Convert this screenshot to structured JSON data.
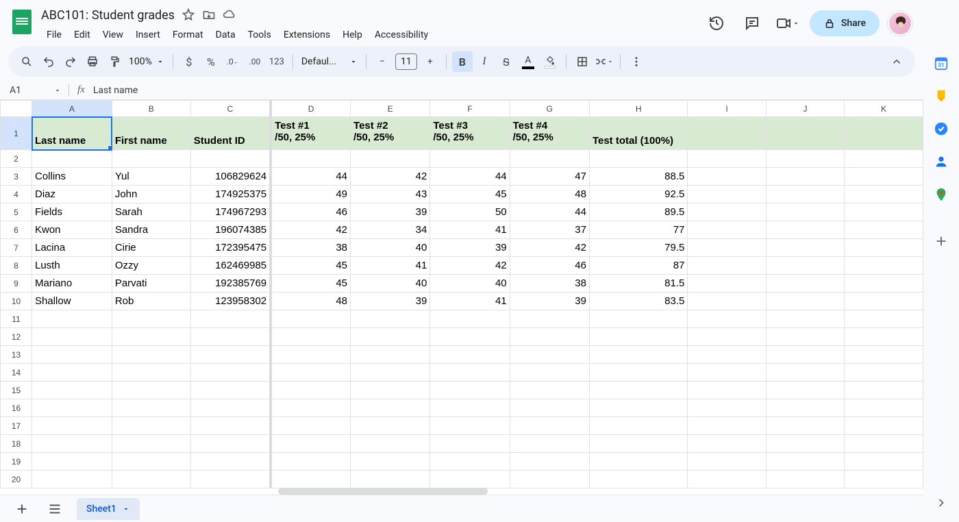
{
  "doc": {
    "title": "ABC101: Student grades"
  },
  "menu": [
    "File",
    "Edit",
    "View",
    "Insert",
    "Format",
    "Data",
    "Tools",
    "Extensions",
    "Help",
    "Accessibility"
  ],
  "share_label": "Share",
  "toolbar": {
    "zoom": "100%",
    "currency": "$",
    "percent": "%",
    "dec_dec": ".0",
    "dec_inc": ".00",
    "fmt123": "123",
    "font_name": "Defaul...",
    "font_size": "11",
    "bold": "B",
    "italic": "I",
    "strike": "S"
  },
  "cell_ref": "A1",
  "formula_value": "Last name",
  "columns": [
    "A",
    "B",
    "C",
    "D",
    "E",
    "F",
    "G",
    "H",
    "I",
    "J",
    "K"
  ],
  "row_count": 20,
  "header_row": 1,
  "headers": {
    "A": "Last name",
    "B": "First name",
    "C": "Student ID",
    "D": "Test #1\n/50, 25%",
    "E": "Test #2\n/50, 25%",
    "F": "Test #3\n/50, 25%",
    "G": "Test #4\n/50, 25%",
    "H": "Test total (100%)",
    "I": "",
    "J": "",
    "K": ""
  },
  "selected": {
    "col": "A",
    "row": 1
  },
  "freeze_after_col": "C",
  "data_rows": [
    {
      "row": 3,
      "A": "Collins",
      "B": "Yul",
      "C": "106829624",
      "D": "44",
      "E": "42",
      "F": "44",
      "G": "47",
      "H": "88.5"
    },
    {
      "row": 4,
      "A": "Diaz",
      "B": "John",
      "C": "174925375",
      "D": "49",
      "E": "43",
      "F": "45",
      "G": "48",
      "H": "92.5"
    },
    {
      "row": 5,
      "A": "Fields",
      "B": "Sarah",
      "C": "174967293",
      "D": "46",
      "E": "39",
      "F": "50",
      "G": "44",
      "H": "89.5"
    },
    {
      "row": 6,
      "A": "Kwon",
      "B": "Sandra",
      "C": "196074385",
      "D": "42",
      "E": "34",
      "F": "41",
      "G": "37",
      "H": "77"
    },
    {
      "row": 7,
      "A": "Lacina",
      "B": "Cirie",
      "C": "172395475",
      "D": "38",
      "E": "40",
      "F": "39",
      "G": "42",
      "H": "79.5"
    },
    {
      "row": 8,
      "A": "Lusth",
      "B": "Ozzy",
      "C": "162469985",
      "D": "45",
      "E": "41",
      "F": "42",
      "G": "46",
      "H": "87"
    },
    {
      "row": 9,
      "A": "Mariano",
      "B": "Parvati",
      "C": "192385769",
      "D": "45",
      "E": "40",
      "F": "40",
      "G": "38",
      "H": "81.5"
    },
    {
      "row": 10,
      "A": "Shallow",
      "B": "Rob",
      "C": "123958302",
      "D": "48",
      "E": "39",
      "F": "41",
      "G": "39",
      "H": "83.5"
    }
  ],
  "numeric_cols": [
    "C",
    "D",
    "E",
    "F",
    "G",
    "H"
  ],
  "sheet_tab": "Sheet1",
  "colors": {
    "header_bg": "#d9ead3",
    "selection": "#1a73e8",
    "toolbar_bg": "#edf2fa"
  }
}
